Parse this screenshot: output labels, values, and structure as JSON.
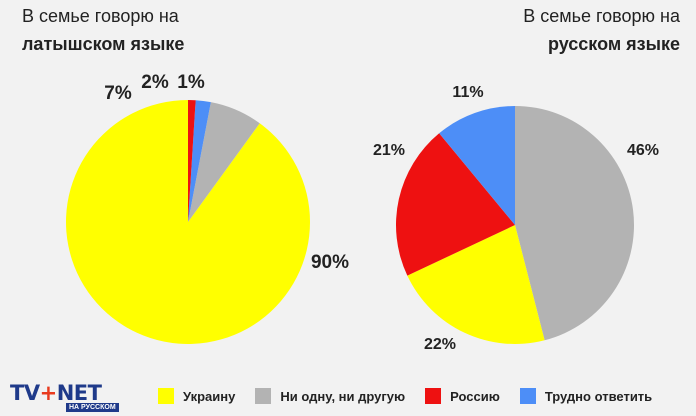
{
  "chart_data": [
    {
      "type": "pie",
      "title_plain": "В семье говорю на",
      "title_bold": "латышском языке",
      "slices": [
        {
          "label": "Украину",
          "value": 90,
          "display": "90%",
          "color": "#ffff00"
        },
        {
          "label": "Ни одну, ни другую",
          "value": 7,
          "display": "7%",
          "color": "#b3b3b3"
        },
        {
          "label": "Трудно ответить",
          "value": 2,
          "display": "2%",
          "color": "#4d8ef7"
        },
        {
          "label": "Россию",
          "value": 1,
          "display": "1%",
          "color": "#ee1111"
        }
      ]
    },
    {
      "type": "pie",
      "title_plain": "В семье говорю на",
      "title_bold": "русском языке",
      "slices": [
        {
          "label": "Ни одну, ни другую",
          "value": 46,
          "display": "46%",
          "color": "#b3b3b3"
        },
        {
          "label": "Украину",
          "value": 22,
          "display": "22%",
          "color": "#ffff00"
        },
        {
          "label": "Россию",
          "value": 21,
          "display": "21%",
          "color": "#ee1111"
        },
        {
          "label": "Трудно ответить",
          "value": 11,
          "display": "11%",
          "color": "#4d8ef7"
        }
      ]
    }
  ],
  "legend": [
    {
      "label": "Украину",
      "color": "#ffff00"
    },
    {
      "label": "Ни одну, ни другую",
      "color": "#b3b3b3"
    },
    {
      "label": "Россию",
      "color": "#ee1111"
    },
    {
      "label": "Трудно ответить",
      "color": "#4d8ef7"
    }
  ],
  "logo": {
    "main_left": "TV",
    "main_plus": "+",
    "main_right": "NET",
    "sub": "НА РУССКОМ"
  }
}
